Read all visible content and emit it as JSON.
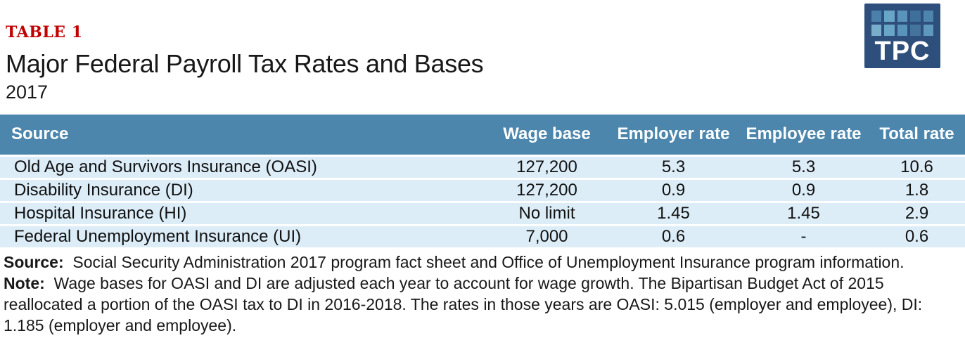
{
  "colors": {
    "accent_red": "#c00000",
    "table_header_blue": "#4c86ad",
    "table_row_blue": "#dcedf8",
    "row_separator": "#ffffff",
    "logo_navy": "#2e4e7c"
  },
  "header": {
    "table_label": "TABLE 1",
    "title": "Major Federal Payroll Tax Rates and Bases",
    "subtitle": "2017"
  },
  "logo": {
    "text": "TPC",
    "squares": [
      "#4a80aa",
      "#69a5c6",
      "#5995ba",
      "#3f6f9b",
      "#4c86ad",
      "#79aecb",
      "#69a5c6",
      "#5995ba",
      "#44739c",
      "#5e98bc"
    ]
  },
  "chart_data": {
    "type": "table",
    "title": "Major Federal Payroll Tax Rates and Bases",
    "subtitle": "2017",
    "columns": [
      "Source",
      "Wage base",
      "Employer rate",
      "Employee rate",
      "Total rate"
    ],
    "rows": [
      [
        "Old Age and Survivors Insurance (OASI)",
        "127,200",
        "5.3",
        "5.3",
        "10.6"
      ],
      [
        "Disability Insurance (DI)",
        "127,200",
        "0.9",
        "0.9",
        "1.8"
      ],
      [
        "Hospital Insurance (HI)",
        "No limit",
        "1.45",
        "1.45",
        "2.9"
      ],
      [
        "Federal Unemployment Insurance (UI)",
        "7,000",
        "0.6",
        "-",
        "0.6"
      ]
    ]
  },
  "footnotes": [
    {
      "label": "Source:",
      "text": "  Social Security Administration 2017 program fact sheet and Office of Unemployment Insurance program information."
    },
    {
      "label": "Note:",
      "text": "  Wage bases for OASI and DI are adjusted each year to account for wage growth. The Bipartisan Budget Act of 2015"
    },
    {
      "label": "",
      "text": "reallocated a portion of the OASI tax to DI in 2016-2018. The rates in those years are OASI: 5.015 (employer and employee), DI:"
    },
    {
      "label": "",
      "text": "1.185 (employer and employee)."
    }
  ]
}
